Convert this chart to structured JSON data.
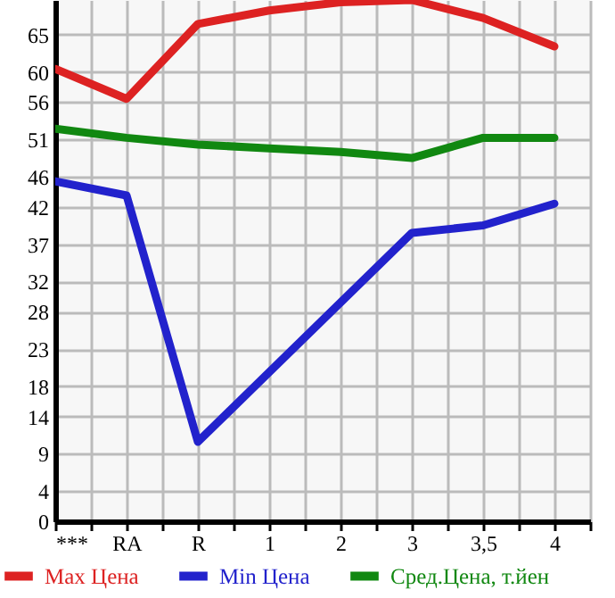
{
  "chart_data": {
    "type": "line",
    "categories": [
      "***",
      "RA",
      "R",
      "1",
      "2",
      "3",
      "3,5",
      "4"
    ],
    "series": [
      {
        "name": "Max Цена",
        "color": "#dd2222",
        "values": [
          60.4,
          56.4,
          66.4,
          68.2,
          69.3,
          69.6,
          67.2,
          63.4
        ]
      },
      {
        "name": "Min Цена",
        "color": "#2222cc",
        "values": [
          45.4,
          43.5,
          10.6,
          19.9,
          29.2,
          38.5,
          39.5,
          42.4
        ]
      },
      {
        "name": "Сред.Цена, т.йен",
        "color": "#118811",
        "values": [
          52.4,
          51.2,
          50.3,
          49.8,
          49.3,
          48.5,
          51.2,
          51.2
        ]
      }
    ],
    "ylim": [
      0,
      69.6
    ],
    "yticks": [
      0,
      4,
      9,
      14,
      18,
      23,
      28,
      32,
      37,
      42,
      46,
      51,
      56,
      60,
      65
    ],
    "grid": true,
    "legend": "bottom",
    "marker": "none",
    "line_style": "solid"
  }
}
